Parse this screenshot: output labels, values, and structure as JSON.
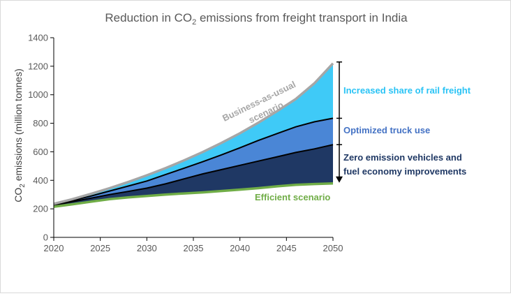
{
  "chart_data": {
    "type": "area",
    "title": "Reduction in CO2 emissions from freight transport in India",
    "title_parts": [
      "Reduction in CO",
      "2",
      " emissions from freight transport in India"
    ],
    "ylabel": "CO2 emissions (million tonnes)",
    "ylabel_parts": [
      "CO",
      "2",
      " emissions (million tonnes)"
    ],
    "xlabel": "",
    "xlim": [
      2020,
      2050
    ],
    "ylim": [
      0,
      1400
    ],
    "xticks": [
      2020,
      2025,
      2030,
      2035,
      2040,
      2045,
      2050
    ],
    "yticks": [
      0,
      200,
      400,
      600,
      800,
      1000,
      1200,
      1400
    ],
    "grid": false,
    "x": [
      2020,
      2022,
      2024,
      2026,
      2028,
      2030,
      2032,
      2034,
      2036,
      2038,
      2040,
      2042,
      2044,
      2046,
      2048,
      2050
    ],
    "series": [
      {
        "name": "Business-as-usual scenario",
        "values": [
          235,
          268,
          305,
          345,
          388,
          435,
          485,
          540,
          598,
          662,
          730,
          805,
          885,
          970,
          1080,
          1220
        ]
      },
      {
        "name": "Optimized truck use",
        "values": [
          230,
          258,
          290,
          325,
          360,
          395,
          440,
          485,
          530,
          578,
          628,
          680,
          728,
          775,
          810,
          835
        ]
      },
      {
        "name": "Zero emission vehicles and fuel economy improvements",
        "values": [
          225,
          250,
          275,
          300,
          322,
          345,
          375,
          410,
          445,
          475,
          505,
          535,
          565,
          595,
          620,
          650
        ]
      },
      {
        "name": "Efficient scenario",
        "values": [
          215,
          232,
          250,
          268,
          280,
          290,
          300,
          308,
          315,
          325,
          335,
          345,
          358,
          368,
          374,
          378
        ]
      }
    ],
    "annotations": {
      "bau_label_line1": "Business-as-usual",
      "bau_label_line2": "scenario",
      "efficient_label": "Efficient scenario",
      "rail_label": "Increased share of rail freight",
      "truck_label": "Optimized truck use",
      "zev_label_line1": "Zero emission vehicles and",
      "zev_label_line2": "fuel economy improvements"
    },
    "colors": {
      "rail_fill": "#3fcaf7",
      "truck_fill": "#4a86d6",
      "zev_fill": "#1f3864",
      "bau_line": "#a6a6a6",
      "efficient_line": "#70ad47",
      "rail_text": "#29c3f5",
      "truck_text": "#4472c4",
      "zev_text": "#1f3864",
      "efficient_text": "#70ad47",
      "bau_text": "#a6a6a6"
    }
  }
}
